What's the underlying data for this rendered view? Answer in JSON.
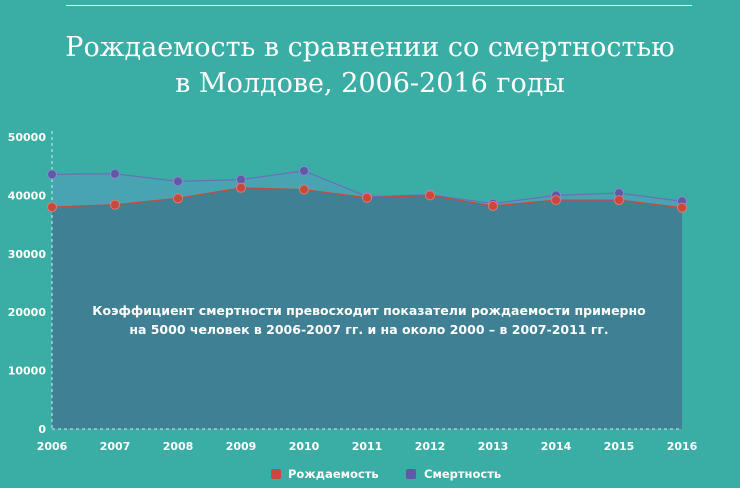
{
  "chart_data": {
    "type": "area",
    "title_lines": [
      "Рождаемость в сравнении со смертностью",
      "в Молдове, 2006-2016 годы"
    ],
    "categories": [
      "2006",
      "2007",
      "2008",
      "2009",
      "2010",
      "2011",
      "2012",
      "2013",
      "2014",
      "2015",
      "2016"
    ],
    "series": [
      {
        "name": "Рождаемость",
        "color": "#c8473e",
        "values": [
          38000,
          38400,
          39500,
          41300,
          41000,
          39600,
          40000,
          38200,
          39200,
          39200,
          37900
        ]
      },
      {
        "name": "Смертность",
        "color": "#5e5aa8",
        "values": [
          43600,
          43700,
          42400,
          42700,
          44200,
          39800,
          40100,
          38600,
          40000,
          40400,
          39000
        ]
      }
    ],
    "ylim": [
      0,
      50000
    ],
    "yticks": [
      0,
      10000,
      20000,
      30000,
      40000,
      50000
    ],
    "annotation_lines": [
      "Коэффициент смертности превосходит показатели рождаемости примерно",
      "на 5000 человек в 2006-2007 гг. и на около 2000 – в 2007-2011 гг."
    ],
    "legend_position": "bottom-center",
    "grid": false
  }
}
